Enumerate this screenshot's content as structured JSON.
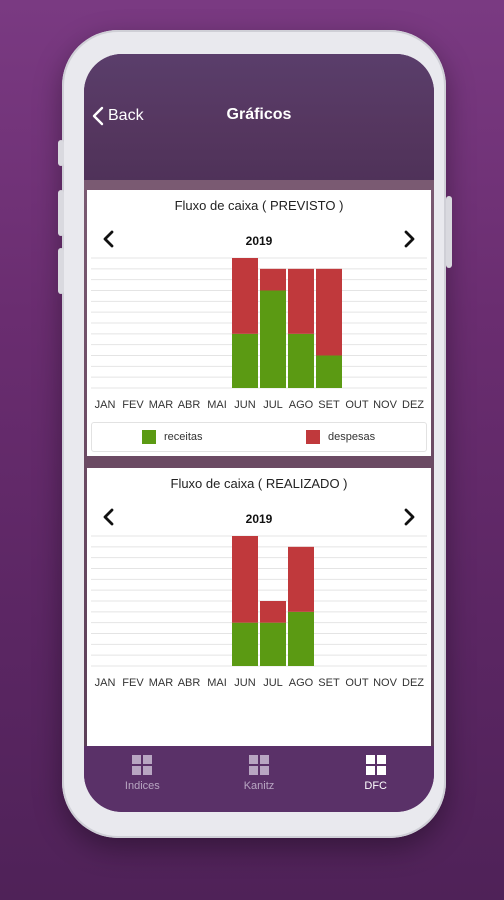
{
  "header": {
    "back_label": "Back",
    "title": "Gráficos"
  },
  "months": [
    "JAN",
    "FEV",
    "MAR",
    "ABR",
    "MAI",
    "JUN",
    "JUL",
    "AGO",
    "SET",
    "OUT",
    "NOV",
    "DEZ"
  ],
  "colors": {
    "receitas": "#5b9a13",
    "despesas": "#c0393c"
  },
  "charts": [
    {
      "title": "Fluxo de caixa ( PREVISTO )",
      "year": "2019"
    },
    {
      "title": "Fluxo de caixa ( REALIZADO )",
      "year": "2019"
    }
  ],
  "legend": {
    "receitas": "receitas",
    "despesas": "despesas"
  },
  "tabs": [
    {
      "label": "Indices",
      "icon": "grid-icon"
    },
    {
      "label": "Kanitz",
      "icon": "grid-icon"
    },
    {
      "label": "DFC",
      "icon": "grid-icon",
      "active": true
    }
  ],
  "chart_data": [
    {
      "type": "bar",
      "stacked": true,
      "title": "Fluxo de caixa ( PREVISTO )",
      "categories": [
        "JAN",
        "FEV",
        "MAR",
        "ABR",
        "MAI",
        "JUN",
        "JUL",
        "AGO",
        "SET",
        "OUT",
        "NOV",
        "DEZ"
      ],
      "series": [
        {
          "name": "receitas",
          "values": [
            0,
            0,
            0,
            0,
            0,
            5,
            9,
            5,
            3,
            0,
            0,
            0
          ]
        },
        {
          "name": "despesas",
          "values": [
            0,
            0,
            0,
            0,
            0,
            7,
            2,
            6,
            8,
            0,
            0,
            0
          ]
        }
      ],
      "ylim": [
        0,
        12
      ],
      "grid": true,
      "legend": "bottom"
    },
    {
      "type": "bar",
      "stacked": true,
      "title": "Fluxo de caixa ( REALIZADO )",
      "categories": [
        "JAN",
        "FEV",
        "MAR",
        "ABR",
        "MAI",
        "JUN",
        "JUL",
        "AGO",
        "SET",
        "OUT",
        "NOV",
        "DEZ"
      ],
      "series": [
        {
          "name": "receitas",
          "values": [
            0,
            0,
            0,
            0,
            0,
            4,
            4,
            5,
            0,
            0,
            0,
            0
          ]
        },
        {
          "name": "despesas",
          "values": [
            0,
            0,
            0,
            0,
            0,
            8,
            2,
            6,
            0,
            0,
            0,
            0
          ]
        }
      ],
      "ylim": [
        0,
        12
      ],
      "grid": true
    }
  ]
}
